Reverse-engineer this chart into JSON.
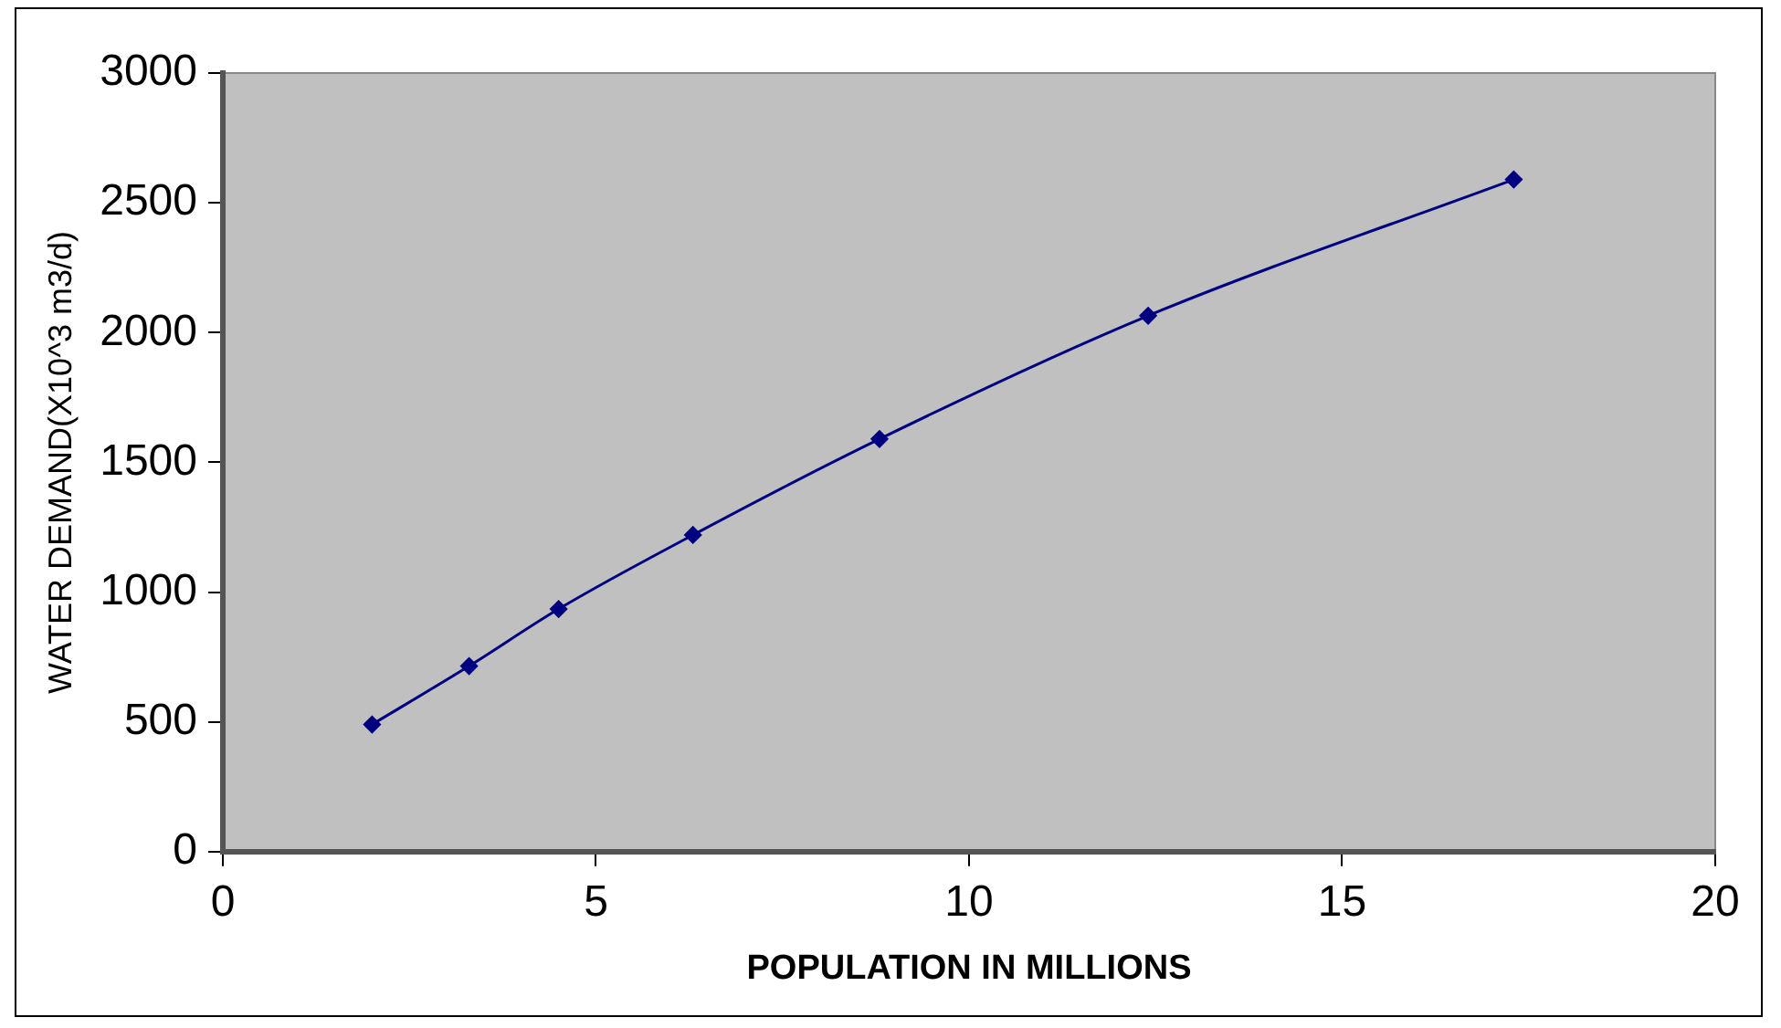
{
  "chart_data": {
    "type": "line",
    "xlabel": "POPULATION IN MILLIONS",
    "ylabel": "WATER DEMAND(X10^3 m3/d)",
    "x": [
      2.0,
      3.3,
      4.5,
      6.3,
      8.8,
      12.4,
      17.3
    ],
    "series": [
      {
        "color": "#000080",
        "values": [
          490,
          715,
          935,
          1220,
          1590,
          2065,
          2590
        ]
      }
    ],
    "xlim": [
      0,
      20
    ],
    "xticks": [
      0,
      5,
      10,
      15,
      20
    ],
    "ylim": [
      0,
      3000
    ],
    "yticks": [
      0,
      500,
      1000,
      1500,
      2000,
      2500,
      3000
    ],
    "grid": false,
    "legend": false,
    "marker": "diamond",
    "line_style": "solid"
  }
}
